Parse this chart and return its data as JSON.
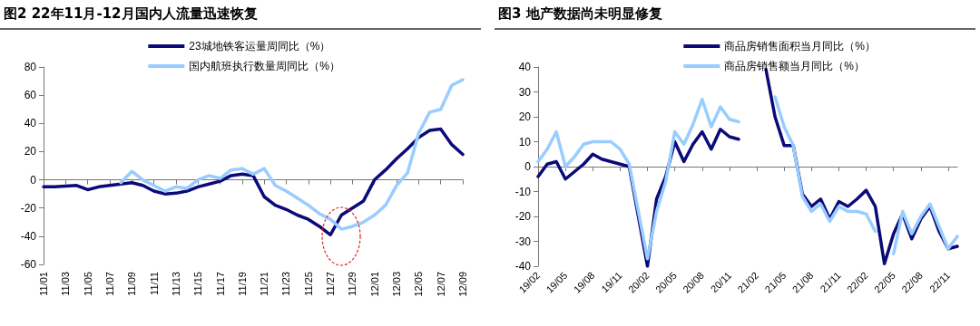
{
  "chart_data": [
    {
      "type": "line",
      "title": "图2  22年11月-12月国内人流量迅速恢复",
      "categories": [
        "11/01",
        null,
        "11/03",
        null,
        "11/05",
        null,
        "11/07",
        null,
        "11/09",
        null,
        "11/11",
        null,
        "11/13",
        null,
        "11/15",
        null,
        "11/17",
        null,
        "11/19",
        null,
        "11/21",
        null,
        "11/23",
        null,
        "11/25",
        null,
        "11/27",
        null,
        "11/29",
        null,
        "12/01",
        null,
        "12/03",
        null,
        "12/05",
        null,
        "12/07",
        null,
        "12/09"
      ],
      "series": [
        {
          "name": "23城地铁客运量周同比（%）",
          "color": "#0a0a78",
          "values": [
            -5,
            -5,
            -4.5,
            -4,
            -7,
            -5,
            -4,
            -3,
            -2,
            -4,
            -8,
            -10,
            -9.5,
            -8,
            -5,
            -3,
            -1,
            3,
            4,
            3,
            -12,
            -18,
            -21,
            -25,
            -28,
            -33,
            -39,
            -25,
            -20,
            -15,
            0,
            7,
            15,
            22,
            30,
            35,
            36,
            25,
            18
          ]
        },
        {
          "name": "国内航班执行数量周同比（%）",
          "color": "#99ccff",
          "values": [
            null,
            null,
            null,
            null,
            null,
            null,
            null,
            -2,
            6,
            0,
            -4,
            -8,
            -5,
            -6,
            0,
            3,
            1,
            7,
            8,
            4,
            8,
            -4,
            -8,
            -13,
            -18,
            -24,
            -28,
            -35,
            -33,
            -30,
            -25,
            -18,
            -4,
            5,
            33,
            48,
            50,
            67,
            71
          ]
        }
      ],
      "ylim": [
        -60,
        80
      ],
      "yticks": [
        -60,
        -40,
        -20,
        0,
        20,
        40,
        60,
        80
      ],
      "legend": "top right",
      "marker": "none",
      "line_style": "solid"
    },
    {
      "type": "line",
      "title": "图3  地产数据尚未明显修复",
      "categories": [
        "19/02",
        null,
        null,
        "19/05",
        null,
        null,
        "19/08",
        null,
        null,
        "19/11",
        null,
        null,
        "20/02",
        null,
        null,
        "20/05",
        null,
        null,
        "20/08",
        null,
        null,
        "20/11",
        null,
        null,
        "21/02",
        null,
        null,
        "21/05",
        null,
        null,
        "21/08",
        null,
        null,
        "21/11",
        null,
        null,
        "22/02",
        null,
        null,
        "22/05",
        null,
        null,
        "22/08",
        null,
        null,
        "22/11",
        null
      ],
      "series": [
        {
          "name": "商品房销售面积当月同比（%）",
          "color": "#0a0a78",
          "values": [
            -4,
            1,
            2,
            -5,
            -2,
            1,
            5,
            3,
            2,
            1,
            0,
            -20,
            -40,
            -13,
            -4,
            10,
            2,
            9,
            14,
            7,
            15,
            12,
            11,
            null,
            null,
            39,
            20,
            8.5,
            8.5,
            -11,
            -16,
            -13,
            -21,
            -14,
            -16,
            -13,
            -9.5,
            -16,
            -39,
            -27,
            -19,
            -29,
            -21,
            -16,
            -26,
            -33,
            -32
          ]
        },
        {
          "name": "商品房销售额当月同比（%）",
          "color": "#99ccff",
          "values": [
            2,
            7,
            14,
            0,
            4,
            9,
            10,
            10,
            10,
            7,
            1,
            -18,
            -37,
            -18,
            -6,
            14,
            9,
            17,
            27,
            16,
            24,
            19,
            18,
            null,
            null,
            null,
            28,
            16,
            8.5,
            -12,
            -18,
            -15,
            -22,
            -16,
            -18,
            -18,
            -19,
            -26,
            null,
            -35,
            -18,
            -27,
            -20,
            -15,
            -24,
            -33,
            -28
          ]
        }
      ],
      "ylim": [
        -40,
        40
      ],
      "yticks": [
        -40,
        -30,
        -20,
        -10,
        0,
        10,
        20,
        30,
        40
      ],
      "legend": "top right",
      "marker": "none",
      "line_style": "solid"
    }
  ]
}
